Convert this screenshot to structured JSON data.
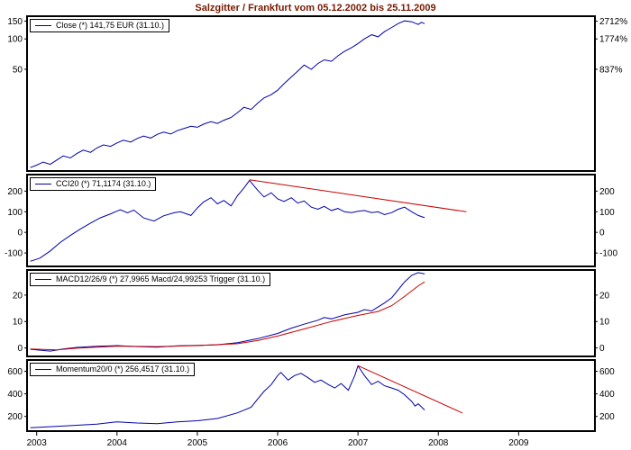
{
  "title": "Salzgitter / Frankfurt vom 05.12.2002 bis 25.11.2009",
  "colors": {
    "series_blue": "#0000aa",
    "series_red": "#cc0000",
    "title_text": "#7a1a00",
    "axis_text": "#000000",
    "panel_border": "#000000",
    "background": "#ffffff"
  },
  "chart_data": {
    "type": "line",
    "x_axis": {
      "range": [
        2002.88,
        2009.95
      ],
      "ticks": [
        2003,
        2004,
        2005,
        2006,
        2007,
        2008,
        2009
      ],
      "tick_labels": [
        "2003",
        "2004",
        "2005",
        "2006",
        "2007",
        "2008",
        "2009"
      ]
    },
    "panels": [
      {
        "name": "price",
        "legend": "Close (*) 141,75 EUR (31.10.)",
        "scale": "log",
        "ylim": [
          4.9,
          168
        ],
        "yticks": {
          "values": [
            150,
            100,
            50
          ],
          "left_labels": [
            "150",
            "100",
            "50"
          ],
          "right_labels": [
            "2712%",
            "1774%",
            "837%"
          ]
        },
        "series": [
          {
            "name": "close",
            "color": "blue",
            "points": [
              [
                2002.92,
                5.3
              ],
              [
                2003.0,
                5.6
              ],
              [
                2003.08,
                6.0
              ],
              [
                2003.17,
                5.7
              ],
              [
                2003.25,
                6.3
              ],
              [
                2003.33,
                6.9
              ],
              [
                2003.42,
                6.6
              ],
              [
                2003.5,
                7.3
              ],
              [
                2003.58,
                7.9
              ],
              [
                2003.67,
                7.5
              ],
              [
                2003.75,
                8.3
              ],
              [
                2003.83,
                8.9
              ],
              [
                2003.92,
                8.6
              ],
              [
                2004.0,
                9.3
              ],
              [
                2004.08,
                9.9
              ],
              [
                2004.17,
                9.5
              ],
              [
                2004.25,
                10.3
              ],
              [
                2004.33,
                10.9
              ],
              [
                2004.42,
                10.4
              ],
              [
                2004.5,
                11.3
              ],
              [
                2004.58,
                11.9
              ],
              [
                2004.67,
                11.4
              ],
              [
                2004.75,
                12.3
              ],
              [
                2004.83,
                12.9
              ],
              [
                2004.92,
                13.6
              ],
              [
                2005.0,
                13.3
              ],
              [
                2005.08,
                14.3
              ],
              [
                2005.17,
                15.1
              ],
              [
                2005.25,
                14.5
              ],
              [
                2005.33,
                15.6
              ],
              [
                2005.42,
                16.6
              ],
              [
                2005.5,
                18.6
              ],
              [
                2005.58,
                21.0
              ],
              [
                2005.67,
                20.0
              ],
              [
                2005.75,
                23.0
              ],
              [
                2005.83,
                26.0
              ],
              [
                2005.92,
                28.0
              ],
              [
                2006.0,
                31.0
              ],
              [
                2006.08,
                36.0
              ],
              [
                2006.17,
                42.0
              ],
              [
                2006.25,
                48.0
              ],
              [
                2006.33,
                55.0
              ],
              [
                2006.42,
                50.0
              ],
              [
                2006.5,
                57.0
              ],
              [
                2006.58,
                62.0
              ],
              [
                2006.67,
                60.0
              ],
              [
                2006.75,
                68.0
              ],
              [
                2006.83,
                75.0
              ],
              [
                2006.92,
                82.0
              ],
              [
                2007.0,
                90.0
              ],
              [
                2007.08,
                100.0
              ],
              [
                2007.17,
                110.0
              ],
              [
                2007.25,
                105.0
              ],
              [
                2007.33,
                118.0
              ],
              [
                2007.42,
                130.0
              ],
              [
                2007.5,
                142.0
              ],
              [
                2007.58,
                151.0
              ],
              [
                2007.67,
                148.0
              ],
              [
                2007.75,
                139.0
              ],
              [
                2007.79,
                146.0
              ],
              [
                2007.83,
                141.75
              ]
            ]
          }
        ]
      },
      {
        "name": "cci",
        "legend": "CCI20 (*) 71,1174 (31.10.)",
        "scale": "linear",
        "ylim": [
          -165,
          280
        ],
        "yticks": {
          "values": [
            200,
            100,
            0,
            -100
          ],
          "left_labels": [
            "200",
            "100",
            "0",
            "-100"
          ],
          "right_labels": [
            "200",
            "100",
            "0",
            "-100"
          ]
        },
        "series": [
          {
            "name": "cci20",
            "color": "blue",
            "points": [
              [
                2002.92,
                -140
              ],
              [
                2003.04,
                -125
              ],
              [
                2003.17,
                -90
              ],
              [
                2003.29,
                -50
              ],
              [
                2003.42,
                -15
              ],
              [
                2003.54,
                15
              ],
              [
                2003.67,
                45
              ],
              [
                2003.79,
                70
              ],
              [
                2003.92,
                90
              ],
              [
                2004.04,
                110
              ],
              [
                2004.13,
                95
              ],
              [
                2004.21,
                108
              ],
              [
                2004.33,
                70
              ],
              [
                2004.46,
                55
              ],
              [
                2004.58,
                80
              ],
              [
                2004.71,
                95
              ],
              [
                2004.79,
                100
              ],
              [
                2004.92,
                82
              ],
              [
                2005.0,
                118
              ],
              [
                2005.08,
                148
              ],
              [
                2005.17,
                168
              ],
              [
                2005.25,
                138
              ],
              [
                2005.33,
                155
              ],
              [
                2005.42,
                128
              ],
              [
                2005.5,
                178
              ],
              [
                2005.58,
                215
              ],
              [
                2005.65,
                252
              ],
              [
                2005.75,
                205
              ],
              [
                2005.83,
                172
              ],
              [
                2005.92,
                192
              ],
              [
                2006.0,
                162
              ],
              [
                2006.08,
                150
              ],
              [
                2006.17,
                168
              ],
              [
                2006.25,
                142
              ],
              [
                2006.33,
                152
              ],
              [
                2006.42,
                122
              ],
              [
                2006.5,
                112
              ],
              [
                2006.58,
                126
              ],
              [
                2006.67,
                106
              ],
              [
                2006.75,
                116
              ],
              [
                2006.83,
                100
              ],
              [
                2006.92,
                96
              ],
              [
                2007.0,
                102
              ],
              [
                2007.08,
                106
              ],
              [
                2007.17,
                96
              ],
              [
                2007.25,
                100
              ],
              [
                2007.33,
                86
              ],
              [
                2007.42,
                96
              ],
              [
                2007.5,
                112
              ],
              [
                2007.58,
                122
              ],
              [
                2007.67,
                100
              ],
              [
                2007.75,
                82
              ],
              [
                2007.83,
                71.1174
              ]
            ]
          },
          {
            "name": "trendline",
            "color": "red",
            "points": [
              [
                2005.65,
                255
              ],
              [
                2008.35,
                100
              ]
            ]
          }
        ]
      },
      {
        "name": "macd",
        "legend": "MACD12/26/9 (*) 27,9965 Macd/24,99253 Trigger (31.10.)",
        "scale": "linear",
        "ylim": [
          -3.2,
          29.5
        ],
        "yticks": {
          "values": [
            20,
            10,
            0
          ],
          "left_labels": [
            "20",
            "10",
            "0"
          ],
          "right_labels": [
            "20",
            "10",
            "0"
          ]
        },
        "series": [
          {
            "name": "macd",
            "color": "blue",
            "points": [
              [
                2002.92,
                -0.5
              ],
              [
                2003.17,
                -1.2
              ],
              [
                2003.33,
                -0.4
              ],
              [
                2003.5,
                0.2
              ],
              [
                2003.75,
                0.6
              ],
              [
                2004.0,
                0.9
              ],
              [
                2004.25,
                0.5
              ],
              [
                2004.5,
                0.3
              ],
              [
                2004.75,
                0.8
              ],
              [
                2005.0,
                1.0
              ],
              [
                2005.25,
                1.2
              ],
              [
                2005.5,
                2.0
              ],
              [
                2005.75,
                3.5
              ],
              [
                2006.0,
                5.5
              ],
              [
                2006.17,
                7.5
              ],
              [
                2006.33,
                9.0
              ],
              [
                2006.5,
                10.5
              ],
              [
                2006.58,
                11.5
              ],
              [
                2006.67,
                11.0
              ],
              [
                2006.83,
                12.5
              ],
              [
                2007.0,
                13.5
              ],
              [
                2007.08,
                14.5
              ],
              [
                2007.17,
                14.0
              ],
              [
                2007.25,
                15.5
              ],
              [
                2007.33,
                17.0
              ],
              [
                2007.42,
                19.0
              ],
              [
                2007.5,
                22.0
              ],
              [
                2007.58,
                25.0
              ],
              [
                2007.67,
                27.5
              ],
              [
                2007.75,
                28.5
              ],
              [
                2007.83,
                27.9965
              ]
            ]
          },
          {
            "name": "trigger",
            "color": "red",
            "points": [
              [
                2002.92,
                -0.4
              ],
              [
                2003.25,
                -0.7
              ],
              [
                2003.5,
                -0.1
              ],
              [
                2004.0,
                0.7
              ],
              [
                2004.5,
                0.5
              ],
              [
                2005.0,
                0.9
              ],
              [
                2005.5,
                1.6
              ],
              [
                2005.75,
                2.8
              ],
              [
                2006.0,
                4.5
              ],
              [
                2006.33,
                7.2
              ],
              [
                2006.67,
                10.0
              ],
              [
                2007.0,
                12.3
              ],
              [
                2007.25,
                13.8
              ],
              [
                2007.42,
                16.0
              ],
              [
                2007.58,
                19.5
              ],
              [
                2007.75,
                23.5
              ],
              [
                2007.83,
                24.99253
              ]
            ]
          }
        ]
      },
      {
        "name": "momentum",
        "legend": "Momentum20/0 (*) 256,4517 (31.10.)",
        "scale": "linear",
        "ylim": [
          70,
          700
        ],
        "yticks": {
          "values": [
            600,
            400,
            200
          ],
          "left_labels": [
            "600",
            "400",
            "200"
          ],
          "right_labels": [
            "600",
            "400",
            "200"
          ]
        },
        "series": [
          {
            "name": "momentum",
            "color": "blue",
            "points": [
              [
                2002.92,
                100
              ],
              [
                2003.25,
                112
              ],
              [
                2003.5,
                122
              ],
              [
                2003.75,
                132
              ],
              [
                2004.0,
                152
              ],
              [
                2004.25,
                142
              ],
              [
                2004.5,
                136
              ],
              [
                2004.75,
                152
              ],
              [
                2005.0,
                162
              ],
              [
                2005.25,
                182
              ],
              [
                2005.5,
                232
              ],
              [
                2005.67,
                282
              ],
              [
                2005.75,
                352
              ],
              [
                2005.83,
                422
              ],
              [
                2005.92,
                482
              ],
              [
                2006.0,
                562
              ],
              [
                2006.04,
                590
              ],
              [
                2006.13,
                522
              ],
              [
                2006.21,
                562
              ],
              [
                2006.29,
                582
              ],
              [
                2006.38,
                542
              ],
              [
                2006.46,
                502
              ],
              [
                2006.54,
                522
              ],
              [
                2006.63,
                482
              ],
              [
                2006.71,
                452
              ],
              [
                2006.79,
                492
              ],
              [
                2006.88,
                432
              ],
              [
                2006.96,
                562
              ],
              [
                2007.0,
                648
              ],
              [
                2007.08,
                562
              ],
              [
                2007.17,
                482
              ],
              [
                2007.25,
                512
              ],
              [
                2007.33,
                472
              ],
              [
                2007.42,
                452
              ],
              [
                2007.5,
                432
              ],
              [
                2007.58,
                392
              ],
              [
                2007.67,
                332
              ],
              [
                2007.71,
                292
              ],
              [
                2007.75,
                312
              ],
              [
                2007.83,
                256.4517
              ]
            ]
          },
          {
            "name": "trendline",
            "color": "red",
            "points": [
              [
                2007.0,
                650
              ],
              [
                2008.3,
                230
              ]
            ]
          }
        ]
      }
    ]
  }
}
